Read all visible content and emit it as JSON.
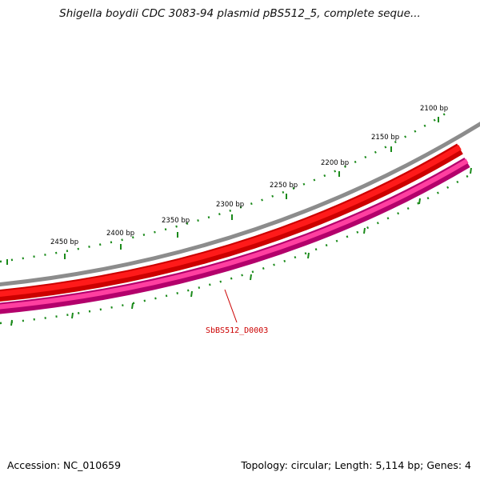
{
  "title": "Shigella boydii CDC 3083-94 plasmid pBS512_5, complete seque...",
  "accession": "Accession: NC_010659",
  "summary": "Topology: circular; Length: 5,114 bp; Genes: 4",
  "colors": {
    "backbone": "#8c8c8c",
    "forward_gene": "#ff0000",
    "forward_gene_dark": "#cc0000",
    "reverse_gene": "#ff3399",
    "reverse_gene_dark": "#b3006b",
    "ticks": "#1a8a1a",
    "gene_label": "#cc0000"
  },
  "ruler": {
    "labels": [
      "2100 bp",
      "2150 bp",
      "2200 bp",
      "2250 bp",
      "2300 bp",
      "2350 bp",
      "2400 bp",
      "2450 bp"
    ]
  },
  "genes": [
    {
      "name": "SbBS512_D0003",
      "strand": "reverse",
      "labeled": true
    },
    {
      "name": "",
      "strand": "forward",
      "labeled": false
    }
  ]
}
